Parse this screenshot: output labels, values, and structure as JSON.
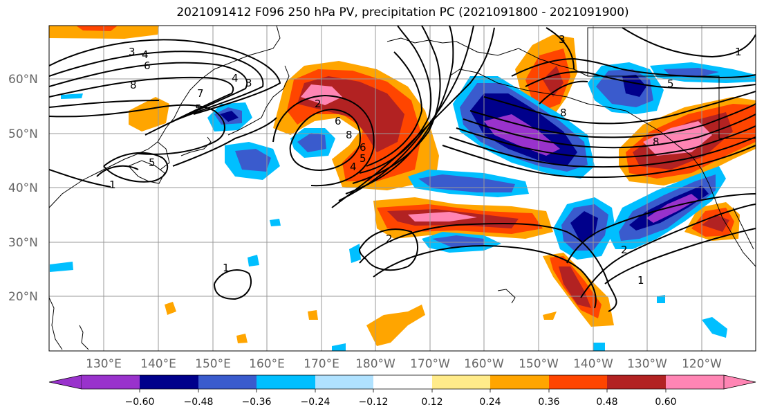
{
  "title": "2021091412 F096 250 hPa PV, precipitation PC (2021091800 - 2021091900)",
  "map": {
    "lon_labels": [
      "130°E",
      "140°E",
      "150°E",
      "160°E",
      "170°E",
      "180°W",
      "170°W",
      "160°W",
      "150°W",
      "140°W",
      "130°W",
      "120°W"
    ],
    "lat_labels": [
      "60°N",
      "50°N",
      "40°N",
      "30°N",
      "20°N"
    ]
  },
  "contour_labels": [
    "3",
    "4",
    "6",
    "8",
    "7",
    "5",
    "4",
    "3",
    "5",
    "1",
    "2",
    "6",
    "8",
    "6",
    "5",
    "4",
    "3",
    "5",
    "8",
    "8",
    "2",
    "1",
    "2",
    "1",
    "1"
  ],
  "colorbar": {
    "colors": [
      "#9932cc",
      "#00008b",
      "#3a5bcd",
      "#00bfff",
      "#b0e2ff",
      "#ffffff",
      "#ffeb8a",
      "#ffa500",
      "#ff4500",
      "#b22222",
      "#ff85b4"
    ],
    "tick_labels": [
      "−0.60",
      "−0.48",
      "−0.36",
      "−0.24",
      "−0.12",
      "0.12",
      "0.24",
      "0.36",
      "0.48",
      "0.60"
    ]
  }
}
